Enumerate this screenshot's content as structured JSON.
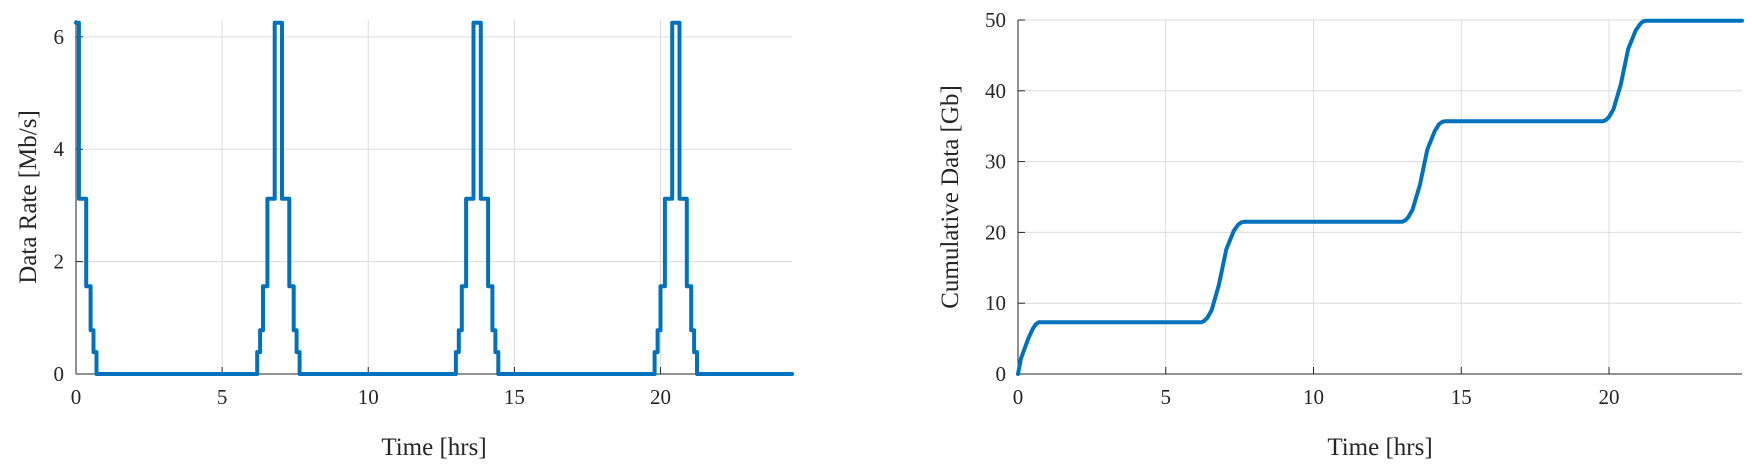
{
  "chart_data": [
    {
      "type": "line",
      "title": "",
      "xlabel": "Time [hrs]",
      "ylabel": "Data Rate [Mb/s]",
      "xlim": [
        0,
        24.5
      ],
      "ylim": [
        0,
        6.3
      ],
      "xticks": [
        0,
        5,
        10,
        15,
        20
      ],
      "yticks": [
        0,
        2,
        4,
        6
      ],
      "grid": true,
      "color": "#0072bd",
      "series": [
        {
          "step": true,
          "x": [
            0,
            0.1,
            0.1,
            0.35,
            0.35,
            0.5,
            0.5,
            0.6,
            0.6,
            0.7,
            0.7,
            6.2,
            6.2,
            6.3,
            6.3,
            6.4,
            6.4,
            6.55,
            6.55,
            6.8,
            6.8,
            7.05,
            7.05,
            7.3,
            7.3,
            7.45,
            7.45,
            7.55,
            7.55,
            7.65,
            7.65,
            13.0,
            13.0,
            13.1,
            13.1,
            13.2,
            13.2,
            13.35,
            13.35,
            13.6,
            13.6,
            13.85,
            13.85,
            14.1,
            14.1,
            14.25,
            14.25,
            14.35,
            14.35,
            14.45,
            14.45,
            19.8,
            19.8,
            19.9,
            19.9,
            20.0,
            20.0,
            20.15,
            20.15,
            20.4,
            20.4,
            20.65,
            20.65,
            20.9,
            20.9,
            21.05,
            21.05,
            21.15,
            21.15,
            21.25,
            21.25,
            24.5
          ],
          "y": [
            6.25,
            6.25,
            3.12,
            3.12,
            1.56,
            1.56,
            0.78,
            0.78,
            0.39,
            0.39,
            0,
            0,
            0.39,
            0.39,
            0.78,
            0.78,
            1.56,
            1.56,
            3.12,
            3.12,
            6.25,
            6.25,
            3.12,
            3.12,
            1.56,
            1.56,
            0.78,
            0.78,
            0.39,
            0.39,
            0,
            0,
            0.39,
            0.39,
            0.78,
            0.78,
            1.56,
            1.56,
            3.12,
            3.12,
            6.25,
            6.25,
            3.12,
            3.12,
            1.56,
            1.56,
            0.78,
            0.78,
            0.39,
            0.39,
            0,
            0,
            0.39,
            0.39,
            0.78,
            0.78,
            1.56,
            1.56,
            3.12,
            3.12,
            6.25,
            6.25,
            3.12,
            3.12,
            1.56,
            1.56,
            0.78,
            0.78,
            0.39,
            0.39,
            0,
            0
          ]
        }
      ]
    },
    {
      "type": "line",
      "title": "",
      "xlabel": "Time [hrs]",
      "ylabel": "Cumulative Data [Gb]",
      "xlim": [
        0,
        24.5
      ],
      "ylim": [
        0,
        50
      ],
      "xticks": [
        0,
        5,
        10,
        15,
        20
      ],
      "yticks": [
        0,
        10,
        20,
        30,
        40,
        50
      ],
      "grid": true,
      "color": "#0072bd",
      "series": [
        {
          "step": false,
          "x": [
            0,
            0.1,
            0.35,
            0.5,
            0.6,
            0.7,
            6.2,
            6.3,
            6.4,
            6.55,
            6.8,
            7.05,
            7.3,
            7.45,
            7.55,
            7.65,
            13.0,
            13.1,
            13.2,
            13.35,
            13.6,
            13.85,
            14.1,
            14.25,
            14.35,
            14.45,
            19.8,
            19.9,
            20.0,
            20.15,
            20.4,
            20.65,
            20.9,
            21.05,
            21.15,
            21.25,
            24.5
          ],
          "y": [
            0,
            2.2,
            5.0,
            6.4,
            7.0,
            7.3,
            7.3,
            7.5,
            7.9,
            9.0,
            12.6,
            17.6,
            20.2,
            21.1,
            21.4,
            21.5,
            21.5,
            21.7,
            22.1,
            23.2,
            26.7,
            31.7,
            34.3,
            35.3,
            35.6,
            35.7,
            35.7,
            35.9,
            36.3,
            37.4,
            40.9,
            45.9,
            48.5,
            49.4,
            49.8,
            49.9,
            49.9
          ]
        }
      ]
    }
  ]
}
